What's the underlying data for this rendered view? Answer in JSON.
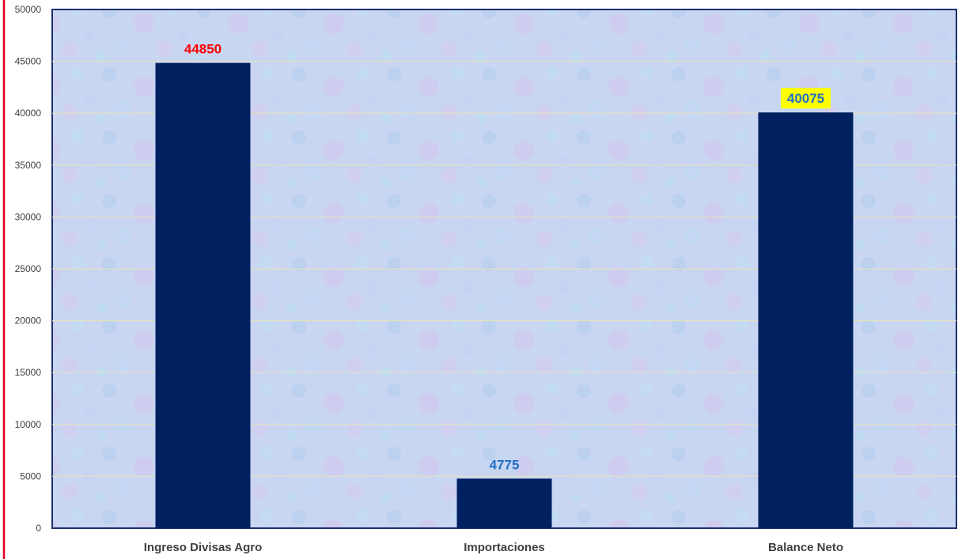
{
  "chart_data": {
    "type": "bar",
    "title": "",
    "xlabel": "",
    "ylabel": "",
    "categories": [
      "Ingreso Divisas Agro",
      "Importaciones",
      "Balance Neto"
    ],
    "values": [
      44850,
      4775,
      40075
    ],
    "data_labels": [
      "44850",
      "4775",
      "40075"
    ],
    "ylim": [
      0,
      50000
    ],
    "yticks": [
      0,
      5000,
      10000,
      15000,
      20000,
      25000,
      30000,
      35000,
      40000,
      45000,
      50000
    ],
    "ytick_labels": [
      "0",
      "5000",
      "10000",
      "15000",
      "20000",
      "25000",
      "30000",
      "35000",
      "40000",
      "45000",
      "50000"
    ],
    "grid": true,
    "legend": "none",
    "colors": {
      "bar": "#002060",
      "plot_background": "#c9d6f2",
      "plot_border": "#1f2f6b",
      "left_accent_line": "#e3001b",
      "gridline": "#e8e2b8",
      "data_label_colors": [
        "#ff0000",
        "#1f6fc4",
        "#1f6fc4"
      ],
      "data_label_backgrounds": [
        "none",
        "none",
        "#ffff00"
      ]
    }
  }
}
